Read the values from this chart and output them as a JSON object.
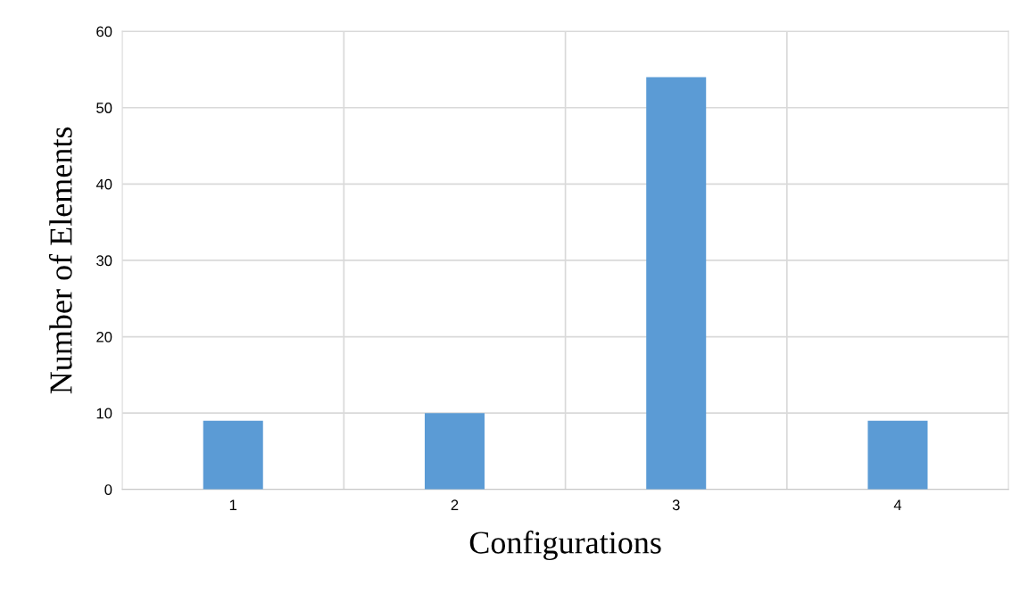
{
  "chart_data": {
    "type": "bar",
    "xlabel": "Configurations",
    "ylabel": "Number of Elements",
    "categories": [
      "1",
      "2",
      "3",
      "4"
    ],
    "values": [
      9,
      10,
      54,
      9
    ],
    "color": "#5b9bd5",
    "ylim": [
      0,
      60
    ],
    "yticks": [
      0,
      10,
      20,
      30,
      40,
      50,
      60
    ],
    "grid": true
  }
}
